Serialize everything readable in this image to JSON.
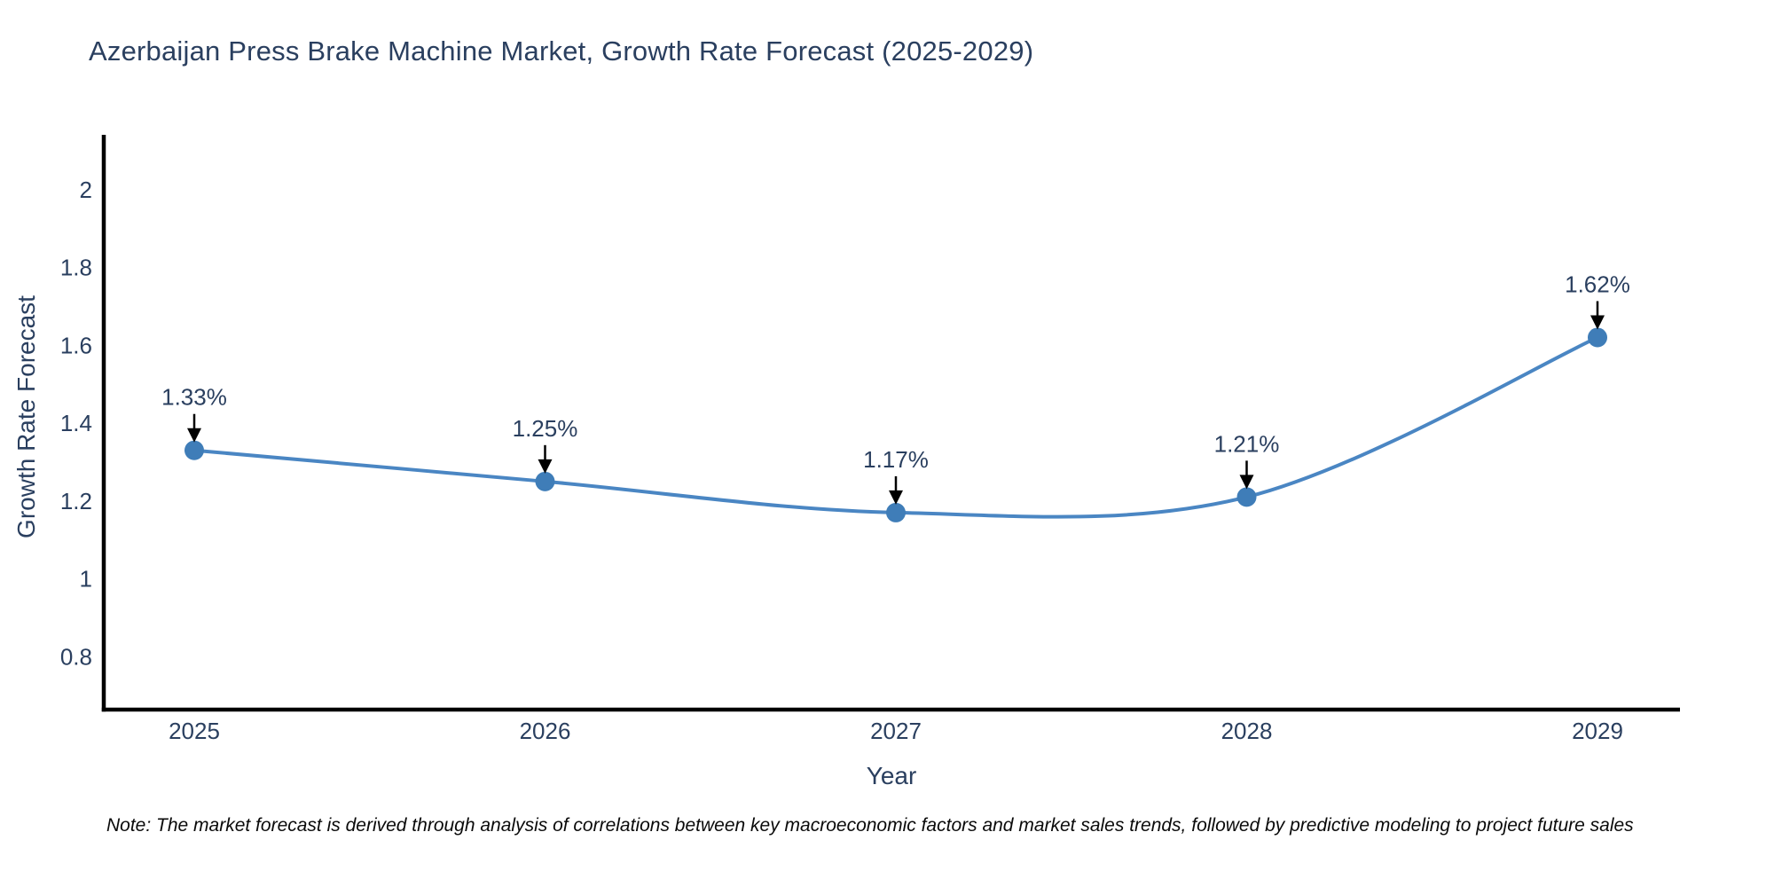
{
  "title": "Azerbaijan Press Brake Machine Market, Growth Rate Forecast (2025-2029)",
  "note": "Note: The market forecast is derived through analysis of correlations between key macroeconomic factors and market sales trends, followed by predictive modeling to project future sales",
  "chart_data": {
    "type": "line",
    "title": "Azerbaijan Press Brake Machine Market, Growth Rate Forecast (2025-2029)",
    "x": [
      2025,
      2026,
      2027,
      2028,
      2029
    ],
    "x_tick_labels": [
      "2025",
      "2026",
      "2027",
      "2028",
      "2029"
    ],
    "series": [
      {
        "name": "Growth Rate Forecast",
        "values": [
          1.33,
          1.25,
          1.17,
          1.21,
          1.62
        ]
      }
    ],
    "point_labels": [
      "1.33%",
      "1.25%",
      "1.17%",
      "1.21%",
      "1.62%"
    ],
    "xlabel": "Year",
    "ylabel": "Growth Rate Forecast",
    "ylim": [
      0.66,
      2.13
    ],
    "y_ticks": [
      0.8,
      1,
      1.2,
      1.4,
      1.6,
      1.8,
      2
    ],
    "y_tick_labels": [
      "0.8",
      "1",
      "1.2",
      "1.4",
      "1.6",
      "1.8",
      "2"
    ],
    "line_shape": "spline",
    "grid": false,
    "legend": "none",
    "colors": {
      "line": "#4a86c3",
      "marker": "#3f7db8",
      "axis": "#000000",
      "text": "#2a3f5f",
      "annotation_arrow": "#000000"
    }
  }
}
